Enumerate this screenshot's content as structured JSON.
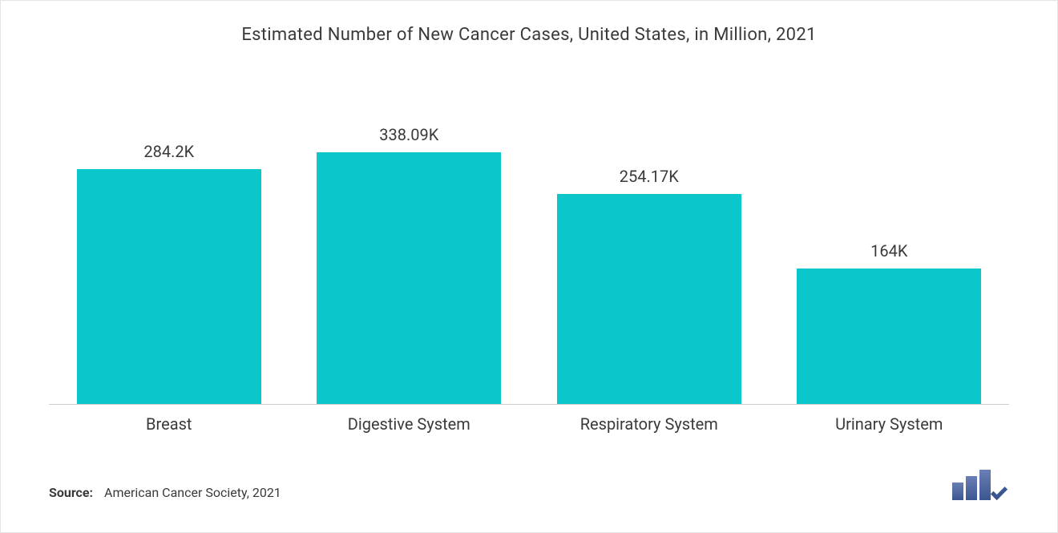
{
  "chart": {
    "type": "bar",
    "title": "Estimated Number of New Cancer Cases, United States, in Million, 2021",
    "title_fontsize": 22,
    "title_color": "#3a3a3a",
    "background_color": "#ffffff",
    "border_color": "#e5e5e5",
    "axis_line_color": "#cccccc",
    "bar_color": "#0bc7cc",
    "value_label_fontsize": 20,
    "value_label_color": "#3a3a3a",
    "category_label_fontsize": 20,
    "category_label_color": "#3a3a3a",
    "y_max": 338.09,
    "bar_width_ratio": 1.0,
    "bars": [
      {
        "category": "Breast",
        "value": 284.2,
        "label": "284.2K"
      },
      {
        "category": "Digestive System",
        "value": 338.09,
        "label": "338.09K"
      },
      {
        "category": "Respiratory System",
        "value": 254.17,
        "label": "254.17K"
      },
      {
        "category": "Urinary System",
        "value": 164,
        "label": "164K"
      }
    ]
  },
  "footer": {
    "source_label": "Source:",
    "source_text": "American Cancer Society, 2021",
    "source_fontsize": 16,
    "source_color": "#3a3a3a"
  },
  "logo": {
    "color_gradient_start": "#6a7fb5",
    "color_gradient_end": "#3b5690"
  }
}
